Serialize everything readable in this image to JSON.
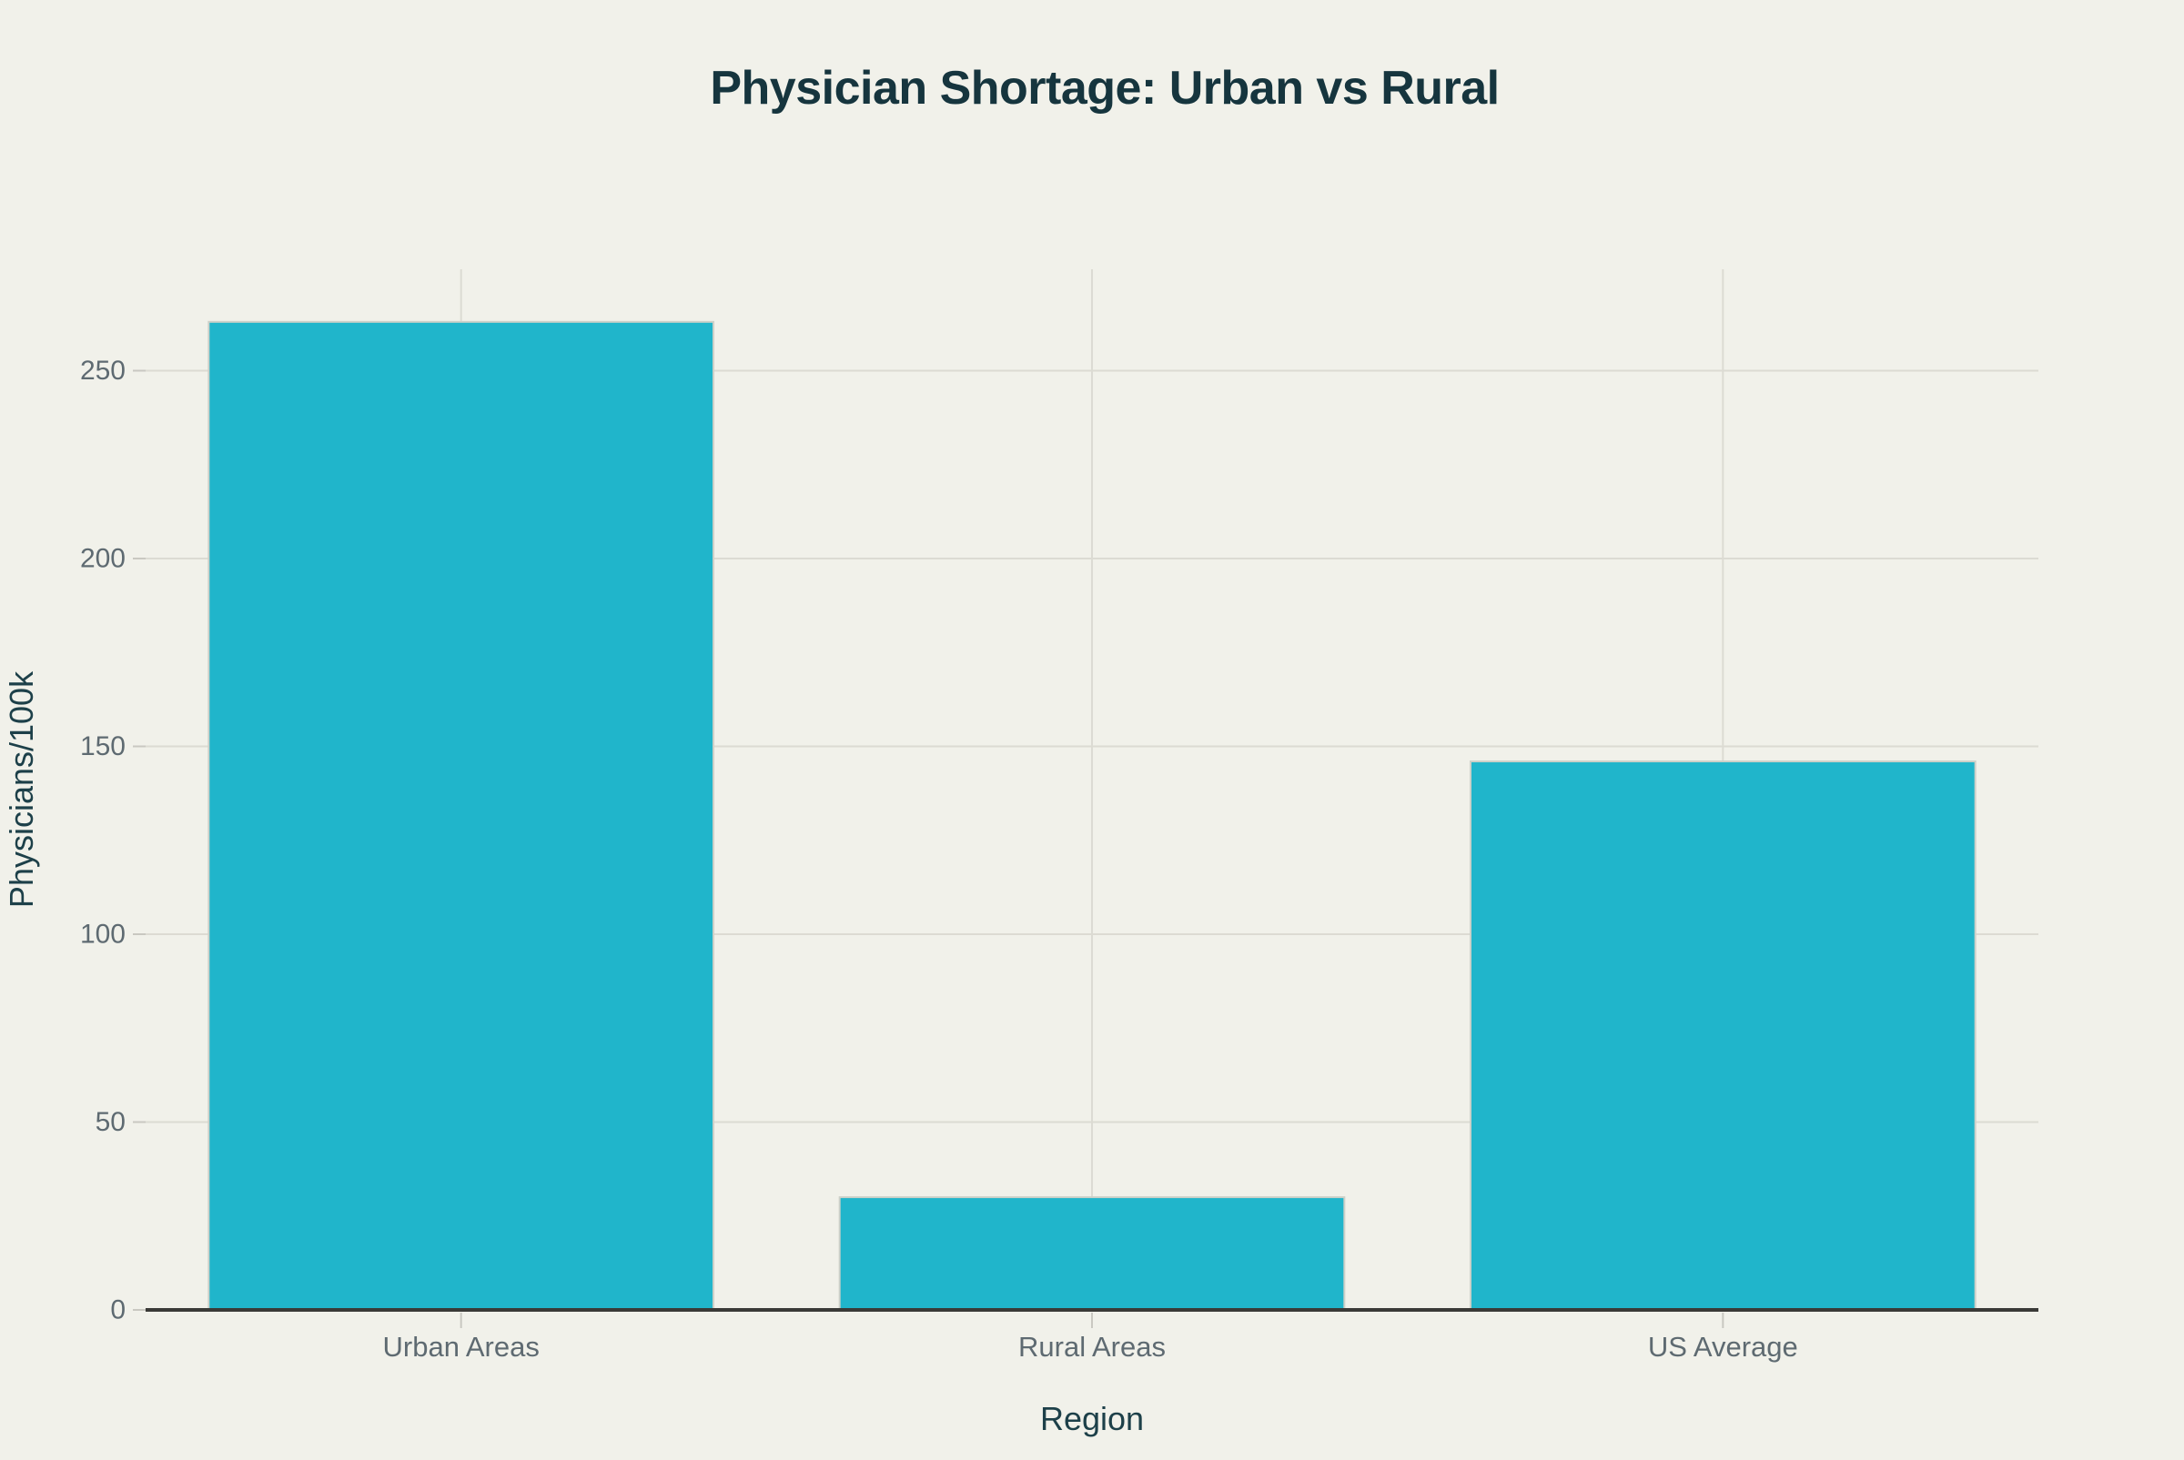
{
  "page": {
    "background": "#f1f1ea"
  },
  "chart_data": {
    "type": "bar",
    "title": "Physician Shortage: Urban vs Rural",
    "categories": [
      "Urban Areas",
      "Rural Areas",
      "US Average"
    ],
    "values": [
      263,
      30,
      146
    ],
    "xlabel": "Region",
    "ylabel": "Physicians/100k",
    "ylim": [
      0,
      277
    ],
    "yticks": [
      0,
      50,
      100,
      150,
      200,
      250
    ],
    "grid": true,
    "legend": false,
    "bar_width_fraction": 0.8,
    "colors": {
      "bar_fill": "#20b5cb",
      "bar_border": "#cdd0c8",
      "background": "#f1f1ea",
      "gridline": "#dcdbd3",
      "tick_mark": "#c9c8c1",
      "axis_line": "#3a3a37",
      "tick_label": "#5e6a71",
      "title": "#16353e",
      "axis_title": "#1d4049"
    }
  }
}
